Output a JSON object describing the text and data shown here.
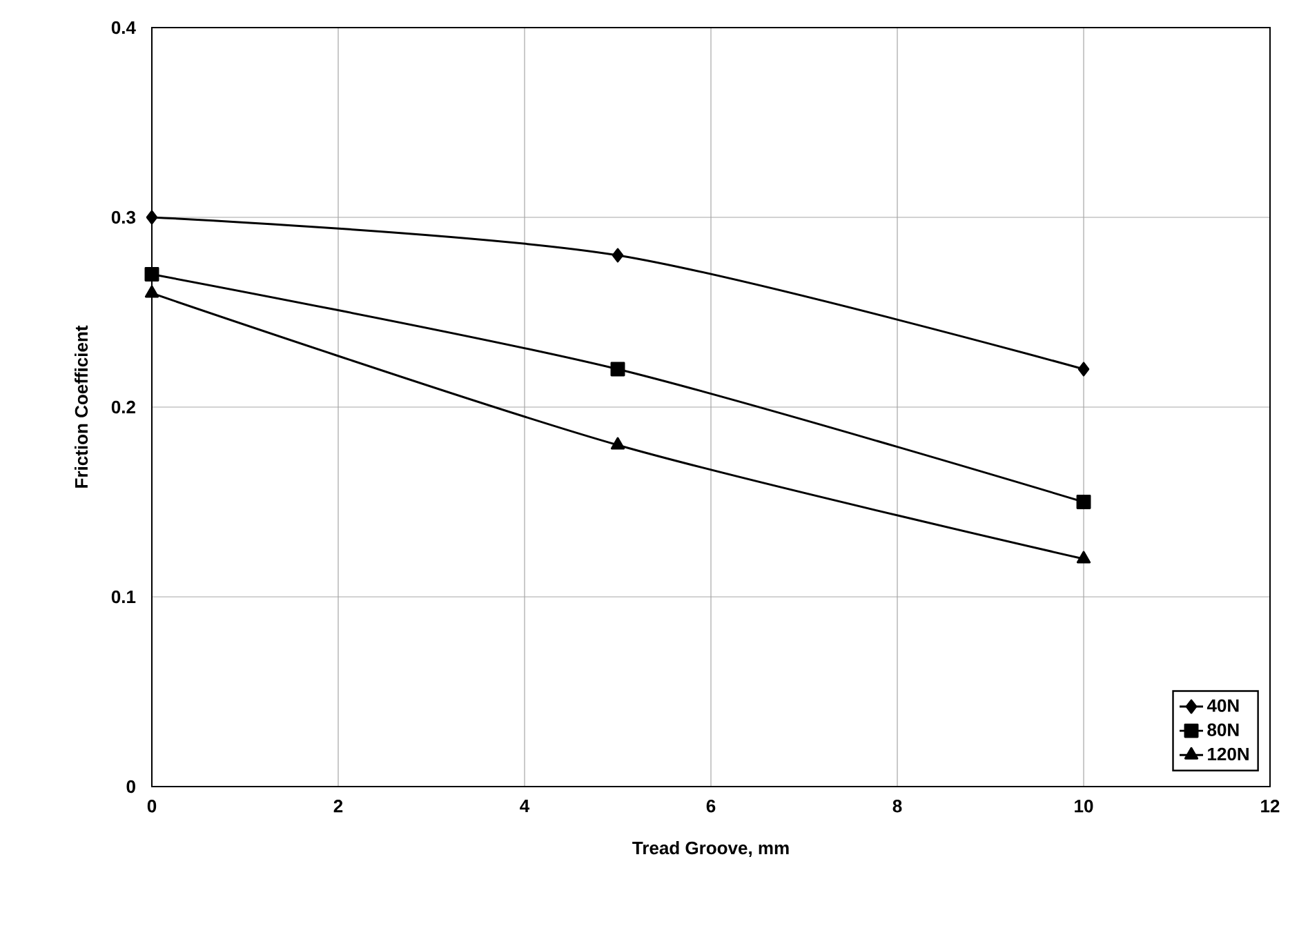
{
  "chart_data": {
    "type": "line",
    "xlabel": "Tread Groove, mm",
    "ylabel": "Friction Coefficient",
    "x": [
      0,
      5,
      10
    ],
    "series": [
      {
        "name": "40N",
        "color": "#000000",
        "marker": "diamond",
        "values": [
          0.3,
          0.28,
          0.22
        ]
      },
      {
        "name": "80N",
        "color": "#000000",
        "marker": "square",
        "values": [
          0.27,
          0.22,
          0.15
        ]
      },
      {
        "name": "120N",
        "color": "#000000",
        "marker": "triangle",
        "values": [
          0.26,
          0.18,
          0.12
        ]
      }
    ],
    "xlim": [
      0,
      12
    ],
    "ylim": [
      0,
      0.4
    ],
    "xticks": [
      0,
      2,
      4,
      6,
      8,
      10,
      12
    ],
    "yticks": [
      0,
      0.1,
      0.2,
      0.3,
      0.4
    ],
    "grid": true,
    "legend": "bottom right"
  }
}
